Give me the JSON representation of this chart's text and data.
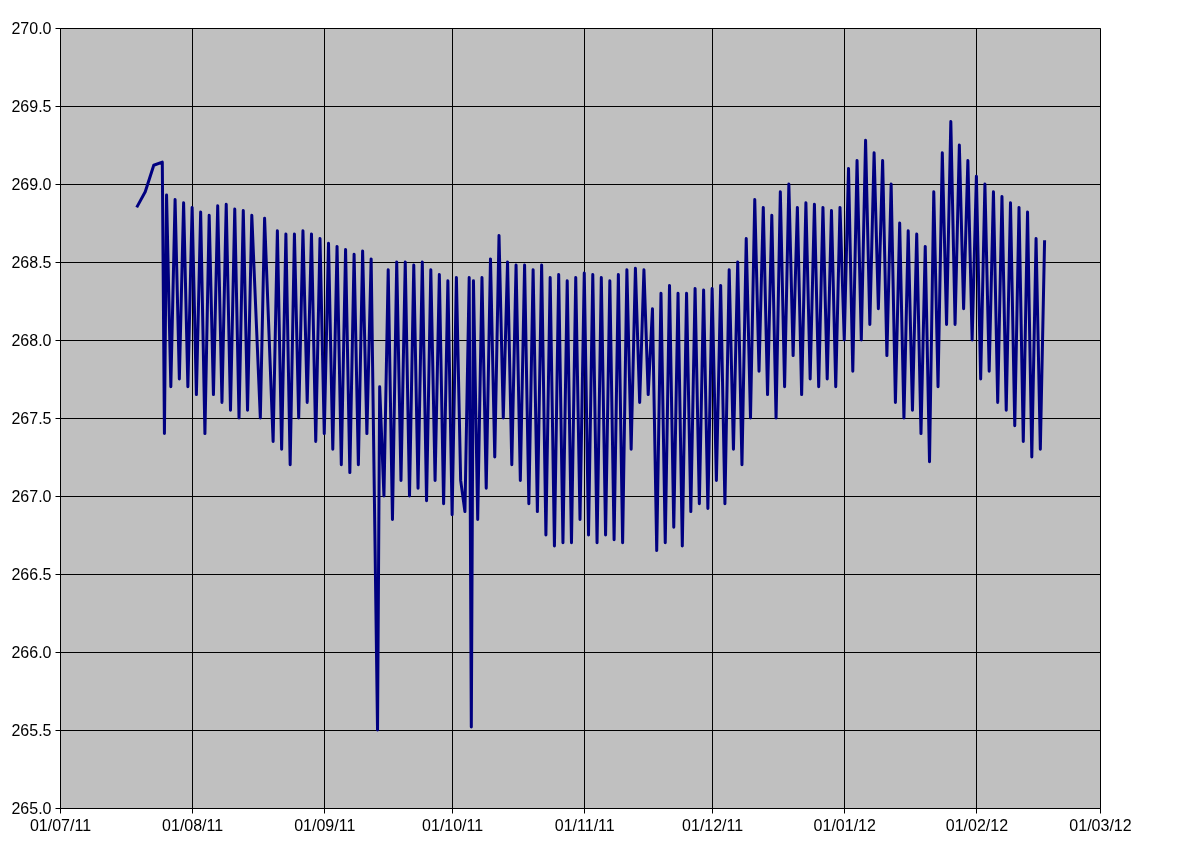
{
  "chart_data": {
    "type": "line",
    "xlim": [
      "2011-07-01",
      "2012-03-01"
    ],
    "xticks": [
      {
        "value": "2011-07-01",
        "label": "01/07/11"
      },
      {
        "value": "2011-08-01",
        "label": "01/08/11"
      },
      {
        "value": "2011-09-01",
        "label": "01/09/11"
      },
      {
        "value": "2011-10-01",
        "label": "01/10/11"
      },
      {
        "value": "2011-11-01",
        "label": "01/11/11"
      },
      {
        "value": "2011-12-01",
        "label": "01/12/11"
      },
      {
        "value": "2012-01-01",
        "label": "01/01/12"
      },
      {
        "value": "2012-02-01",
        "label": "01/02/12"
      },
      {
        "value": "2012-03-01",
        "label": "01/03/12"
      }
    ],
    "ylim": [
      265,
      270
    ],
    "yticks": [
      {
        "value": 265,
        "label": "265.0"
      },
      {
        "value": 265.5,
        "label": "265.5"
      },
      {
        "value": 266,
        "label": "266.0"
      },
      {
        "value": 266.5,
        "label": "266.5"
      },
      {
        "value": 267,
        "label": "267.0"
      },
      {
        "value": 267.5,
        "label": "267.5"
      },
      {
        "value": 268,
        "label": "268.0"
      },
      {
        "value": 268.5,
        "label": "268.5"
      },
      {
        "value": 269,
        "label": "269.0"
      },
      {
        "value": 269.5,
        "label": "269.5"
      },
      {
        "value": 270,
        "label": "270.0"
      }
    ],
    "grid": true,
    "marker": "none",
    "line_style": "solid",
    "series": [
      {
        "color": "#000080",
        "x": [
          "2011-07-19",
          "2011-07-21",
          "2011-07-23",
          "2011-07-25",
          "2011-07-25T12:00",
          "2011-07-26",
          "2011-07-27",
          "2011-07-28",
          "2011-07-29",
          "2011-07-30",
          "2011-07-31",
          "2011-08-01",
          "2011-08-02",
          "2011-08-03",
          "2011-08-04",
          "2011-08-05",
          "2011-08-06",
          "2011-08-07",
          "2011-08-08",
          "2011-08-09",
          "2011-08-10",
          "2011-08-11",
          "2011-08-12",
          "2011-08-13",
          "2011-08-14",
          "2011-08-15",
          "2011-08-17",
          "2011-08-18",
          "2011-08-20",
          "2011-08-21",
          "2011-08-22",
          "2011-08-23",
          "2011-08-24",
          "2011-08-25",
          "2011-08-26",
          "2011-08-27",
          "2011-08-28",
          "2011-08-29",
          "2011-08-30",
          "2011-08-31",
          "2011-09-01",
          "2011-09-02",
          "2011-09-03",
          "2011-09-04",
          "2011-09-05",
          "2011-09-06",
          "2011-09-07",
          "2011-09-08",
          "2011-09-09",
          "2011-09-10",
          "2011-09-11",
          "2011-09-12",
          "2011-09-13T12:00",
          "2011-09-14",
          "2011-09-15",
          "2011-09-16",
          "2011-09-17",
          "2011-09-18",
          "2011-09-19",
          "2011-09-20",
          "2011-09-21",
          "2011-09-22",
          "2011-09-23",
          "2011-09-24",
          "2011-09-25",
          "2011-09-26",
          "2011-09-27",
          "2011-09-28",
          "2011-09-29",
          "2011-09-30",
          "2011-10-01",
          "2011-10-02",
          "2011-10-03",
          "2011-10-04",
          "2011-10-05",
          "2011-10-05T12:00",
          "2011-10-06",
          "2011-10-07",
          "2011-10-08",
          "2011-10-09",
          "2011-10-10",
          "2011-10-11",
          "2011-10-12",
          "2011-10-13",
          "2011-10-14",
          "2011-10-15",
          "2011-10-16",
          "2011-10-17",
          "2011-10-18",
          "2011-10-19",
          "2011-10-20",
          "2011-10-21",
          "2011-10-22",
          "2011-10-23",
          "2011-10-24",
          "2011-10-25",
          "2011-10-26",
          "2011-10-27",
          "2011-10-28",
          "2011-10-29",
          "2011-10-30",
          "2011-10-31",
          "2011-11-01",
          "2011-11-02",
          "2011-11-03",
          "2011-11-04",
          "2011-11-05",
          "2011-11-06",
          "2011-11-07",
          "2011-11-08",
          "2011-11-09",
          "2011-11-10",
          "2011-11-11",
          "2011-11-12",
          "2011-11-13",
          "2011-11-14",
          "2011-11-15",
          "2011-11-16",
          "2011-11-17",
          "2011-11-18",
          "2011-11-19",
          "2011-11-20",
          "2011-11-21",
          "2011-11-22",
          "2011-11-23",
          "2011-11-24",
          "2011-11-25",
          "2011-11-26",
          "2011-11-27",
          "2011-11-28",
          "2011-11-29",
          "2011-11-30",
          "2011-12-01",
          "2011-12-02",
          "2011-12-03",
          "2011-12-04",
          "2011-12-05",
          "2011-12-06",
          "2011-12-07",
          "2011-12-08",
          "2011-12-09",
          "2011-12-10",
          "2011-12-11",
          "2011-12-12",
          "2011-12-13",
          "2011-12-14",
          "2011-12-15",
          "2011-12-16",
          "2011-12-17",
          "2011-12-18",
          "2011-12-19",
          "2011-12-20",
          "2011-12-21",
          "2011-12-22",
          "2011-12-23",
          "2011-12-24",
          "2011-12-25",
          "2011-12-26",
          "2011-12-27",
          "2011-12-28",
          "2011-12-29",
          "2011-12-30",
          "2011-12-31",
          "2012-01-01",
          "2012-01-02",
          "2012-01-03",
          "2012-01-04",
          "2012-01-05",
          "2012-01-06",
          "2012-01-07",
          "2012-01-08",
          "2012-01-09",
          "2012-01-10",
          "2012-01-11",
          "2012-01-12",
          "2012-01-13",
          "2012-01-14",
          "2012-01-15",
          "2012-01-16",
          "2012-01-17",
          "2012-01-18",
          "2012-01-19",
          "2012-01-20",
          "2012-01-21",
          "2012-01-22",
          "2012-01-23",
          "2012-01-24",
          "2012-01-25",
          "2012-01-26",
          "2012-01-27",
          "2012-01-28",
          "2012-01-29",
          "2012-01-30",
          "2012-01-31",
          "2012-02-01",
          "2012-02-02",
          "2012-02-03",
          "2012-02-04",
          "2012-02-05",
          "2012-02-06",
          "2012-02-07",
          "2012-02-08",
          "2012-02-09",
          "2012-02-10",
          "2012-02-11",
          "2012-02-12",
          "2012-02-13",
          "2012-02-14",
          "2012-02-15",
          "2012-02-16",
          "2012-02-17"
        ],
        "values": [
          268.85,
          268.95,
          269.12,
          269.14,
          267.4,
          268.93,
          267.7,
          268.9,
          267.75,
          268.88,
          267.7,
          268.85,
          267.65,
          268.82,
          267.4,
          268.8,
          267.65,
          268.86,
          267.6,
          268.87,
          267.55,
          268.84,
          267.5,
          268.83,
          267.55,
          268.8,
          267.5,
          268.78,
          267.35,
          268.7,
          267.3,
          268.68,
          267.2,
          268.68,
          267.5,
          268.7,
          267.6,
          268.68,
          267.35,
          268.65,
          267.4,
          268.62,
          267.3,
          268.6,
          267.2,
          268.58,
          267.15,
          268.55,
          267.2,
          268.57,
          267.4,
          268.52,
          265.5,
          267.7,
          267.0,
          268.45,
          266.85,
          268.5,
          267.1,
          268.5,
          267.0,
          268.48,
          267.05,
          268.5,
          266.97,
          268.45,
          267.1,
          268.42,
          266.95,
          268.38,
          266.88,
          268.4,
          267.1,
          266.9,
          268.4,
          265.52,
          268.38,
          266.85,
          268.4,
          267.05,
          268.52,
          267.25,
          268.67,
          267.5,
          268.5,
          267.2,
          268.48,
          267.1,
          268.48,
          266.95,
          268.45,
          266.9,
          268.48,
          266.75,
          268.4,
          266.68,
          268.42,
          266.7,
          268.38,
          266.7,
          268.4,
          266.85,
          268.43,
          266.75,
          268.42,
          266.7,
          268.4,
          266.75,
          268.38,
          266.72,
          268.42,
          266.7,
          268.45,
          267.3,
          268.46,
          267.6,
          268.45,
          267.65,
          268.2,
          266.65,
          268.3,
          266.7,
          268.35,
          266.8,
          268.3,
          266.68,
          268.3,
          266.9,
          268.33,
          266.95,
          268.32,
          266.92,
          268.33,
          267.1,
          268.35,
          266.95,
          268.45,
          267.3,
          268.5,
          267.2,
          268.65,
          267.5,
          268.9,
          267.8,
          268.85,
          267.65,
          268.8,
          267.5,
          268.95,
          267.7,
          269.0,
          267.9,
          268.85,
          267.65,
          268.88,
          267.75,
          268.87,
          267.7,
          268.85,
          267.75,
          268.83,
          267.7,
          268.85,
          268.0,
          269.1,
          267.8,
          269.15,
          268.0,
          269.28,
          268.1,
          269.2,
          268.2,
          269.15,
          267.9,
          269.0,
          267.6,
          268.75,
          267.5,
          268.7,
          267.55,
          268.68,
          267.4,
          268.6,
          267.22,
          268.95,
          267.7,
          269.2,
          268.1,
          269.4,
          268.1,
          269.25,
          268.2,
          269.15,
          268.0,
          269.05,
          267.75,
          269.0,
          267.8,
          268.95,
          267.6,
          268.92,
          267.55,
          268.88,
          267.45,
          268.85,
          267.35,
          268.82,
          267.25,
          268.65,
          267.3,
          268.64
        ]
      }
    ]
  }
}
